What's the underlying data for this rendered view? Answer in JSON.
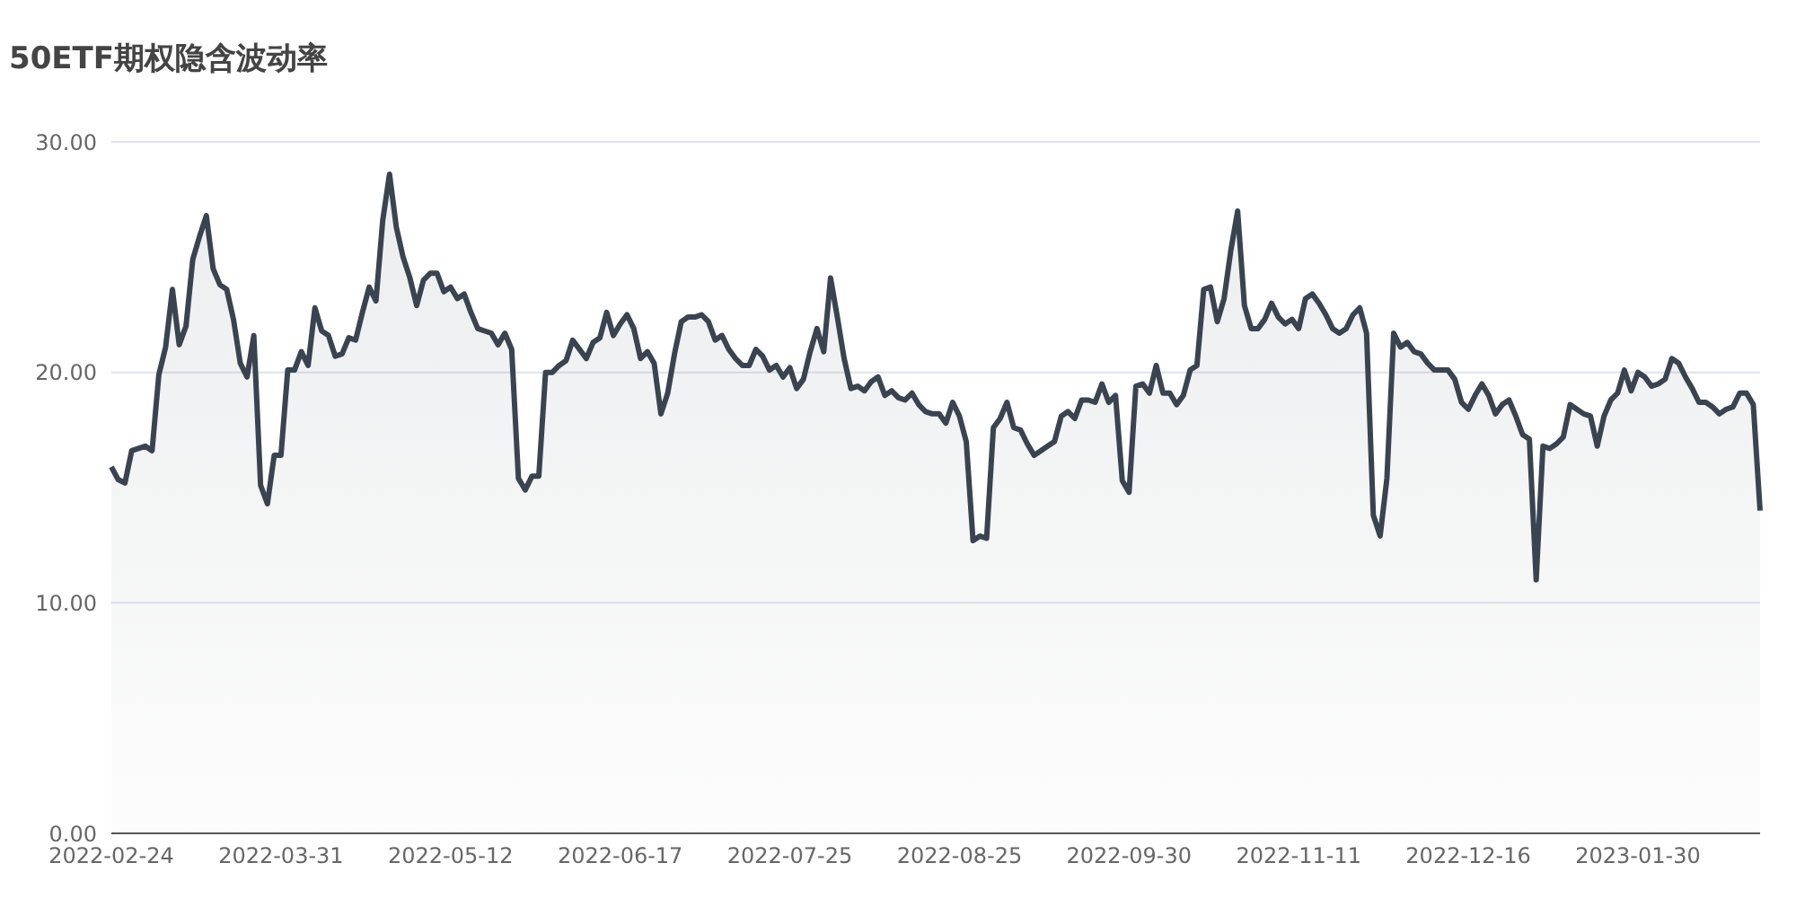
{
  "chart_data": {
    "type": "area",
    "title": "50ETF期权隐含波动率",
    "categories": [
      "2022-02-24",
      null,
      null,
      null,
      null,
      null,
      null,
      null,
      null,
      null,
      null,
      null,
      null,
      null,
      null,
      null,
      null,
      null,
      null,
      null,
      null,
      null,
      null,
      null,
      null,
      "2022-03-31",
      null,
      null,
      null,
      null,
      null,
      null,
      null,
      null,
      null,
      null,
      null,
      null,
      null,
      null,
      null,
      null,
      null,
      null,
      null,
      null,
      null,
      null,
      null,
      null,
      "2022-05-12",
      null,
      null,
      null,
      null,
      null,
      null,
      null,
      null,
      null,
      null,
      null,
      null,
      null,
      null,
      null,
      null,
      null,
      null,
      null,
      null,
      null,
      null,
      null,
      null,
      "2022-06-17",
      null,
      null,
      null,
      null,
      null,
      null,
      null,
      null,
      null,
      null,
      null,
      null,
      null,
      null,
      null,
      null,
      null,
      null,
      null,
      null,
      null,
      null,
      null,
      null,
      "2022-07-25",
      null,
      null,
      null,
      null,
      null,
      null,
      null,
      null,
      null,
      null,
      null,
      null,
      null,
      null,
      null,
      null,
      null,
      null,
      null,
      null,
      null,
      null,
      null,
      null,
      "2022-08-25",
      null,
      null,
      null,
      null,
      null,
      null,
      null,
      null,
      null,
      null,
      null,
      null,
      null,
      null,
      null,
      null,
      null,
      null,
      null,
      null,
      null,
      null,
      null,
      null,
      "2022-09-30",
      null,
      null,
      null,
      null,
      null,
      null,
      null,
      null,
      null,
      null,
      null,
      null,
      null,
      null,
      null,
      null,
      null,
      null,
      null,
      null,
      null,
      null,
      null,
      null,
      "2022-11-11",
      null,
      null,
      null,
      null,
      null,
      null,
      null,
      null,
      null,
      null,
      null,
      null,
      null,
      null,
      null,
      null,
      null,
      null,
      null,
      null,
      null,
      null,
      null,
      null,
      "2022-12-16",
      null,
      null,
      null,
      null,
      null,
      null,
      null,
      null,
      null,
      null,
      null,
      null,
      null,
      null,
      null,
      null,
      null,
      null,
      null,
      null,
      null,
      null,
      null,
      null,
      "2023-01-30",
      null,
      null,
      null,
      null,
      null,
      null,
      null,
      null,
      null,
      null,
      null,
      null,
      null,
      null,
      null,
      null,
      null,
      null
    ],
    "series": [
      {
        "color": "#3a4350",
        "values": [
          15.9,
          15.35,
          15.2,
          16.6,
          16.7,
          16.8,
          16.6,
          19.9,
          21.1,
          23.6,
          21.2,
          22.0,
          24.9,
          25.9,
          26.8,
          24.5,
          23.8,
          23.6,
          22.3,
          20.4,
          19.8,
          21.6,
          15.1,
          14.3,
          16.4,
          16.4,
          20.1,
          20.1,
          20.9,
          20.3,
          22.8,
          21.8,
          21.6,
          20.7,
          20.8,
          21.5,
          21.4,
          22.6,
          23.7,
          23.1,
          26.6,
          28.6,
          26.3,
          25.0,
          24.1,
          22.9,
          24.0,
          24.3,
          24.3,
          23.5,
          23.7,
          23.2,
          23.4,
          22.6,
          21.9,
          21.8,
          21.7,
          21.2,
          21.7,
          21.0,
          15.4,
          14.9,
          15.5,
          15.5,
          20.0,
          20.0,
          20.3,
          20.5,
          21.4,
          21.0,
          20.6,
          21.3,
          21.5,
          22.6,
          21.6,
          22.1,
          22.5,
          21.9,
          20.6,
          20.9,
          20.4,
          18.2,
          19.1,
          20.8,
          22.2,
          22.4,
          22.4,
          22.5,
          22.2,
          21.4,
          21.6,
          21.0,
          20.6,
          20.3,
          20.3,
          21.0,
          20.7,
          20.1,
          20.3,
          19.8,
          20.2,
          19.3,
          19.7,
          20.9,
          21.9,
          20.9,
          24.1,
          22.4,
          20.6,
          19.3,
          19.4,
          19.2,
          19.6,
          19.8,
          19.0,
          19.2,
          18.9,
          18.8,
          19.1,
          18.6,
          18.3,
          18.2,
          18.2,
          17.8,
          18.7,
          18.1,
          17.0,
          12.7,
          12.9,
          12.8,
          17.6,
          18.0,
          18.7,
          17.6,
          17.5,
          16.9,
          16.4,
          16.6,
          16.8,
          17.0,
          18.1,
          18.3,
          18.0,
          18.8,
          18.8,
          18.7,
          19.5,
          18.7,
          19.0,
          15.3,
          14.8,
          19.4,
          19.5,
          19.1,
          20.3,
          19.1,
          19.1,
          18.6,
          19.0,
          20.1,
          20.3,
          23.6,
          23.7,
          22.2,
          23.2,
          25.3,
          27.0,
          22.9,
          21.9,
          21.9,
          22.3,
          23.0,
          22.4,
          22.1,
          22.3,
          21.9,
          23.2,
          23.4,
          23.0,
          22.5,
          21.9,
          21.7,
          21.9,
          22.5,
          22.8,
          21.7,
          13.8,
          12.9,
          15.4,
          21.7,
          21.1,
          21.3,
          20.9,
          20.8,
          20.4,
          20.1,
          20.1,
          20.1,
          19.7,
          18.7,
          18.4,
          19.0,
          19.5,
          19.0,
          18.2,
          18.6,
          18.8,
          18.1,
          17.3,
          17.1,
          11.0,
          16.8,
          16.7,
          16.9,
          17.2,
          18.6,
          18.4,
          18.2,
          18.1,
          16.8,
          18.1,
          18.8,
          19.1,
          20.1,
          19.2,
          20.0,
          19.8,
          19.4,
          19.5,
          19.7,
          20.6,
          20.4,
          19.8,
          19.3,
          18.7,
          18.7,
          18.5,
          18.2,
          18.4,
          18.5,
          19.1,
          19.1,
          18.6,
          14.0
        ]
      }
    ],
    "ylim": [
      0,
      30
    ],
    "yticks": [
      {
        "value": 0,
        "label": "0.00"
      },
      {
        "value": 10,
        "label": "10.00"
      },
      {
        "value": 20,
        "label": "20.00"
      },
      {
        "value": 30,
        "label": "30.00"
      }
    ],
    "grid": "y",
    "legend": false,
    "marker": "none",
    "line_style": "solid"
  }
}
